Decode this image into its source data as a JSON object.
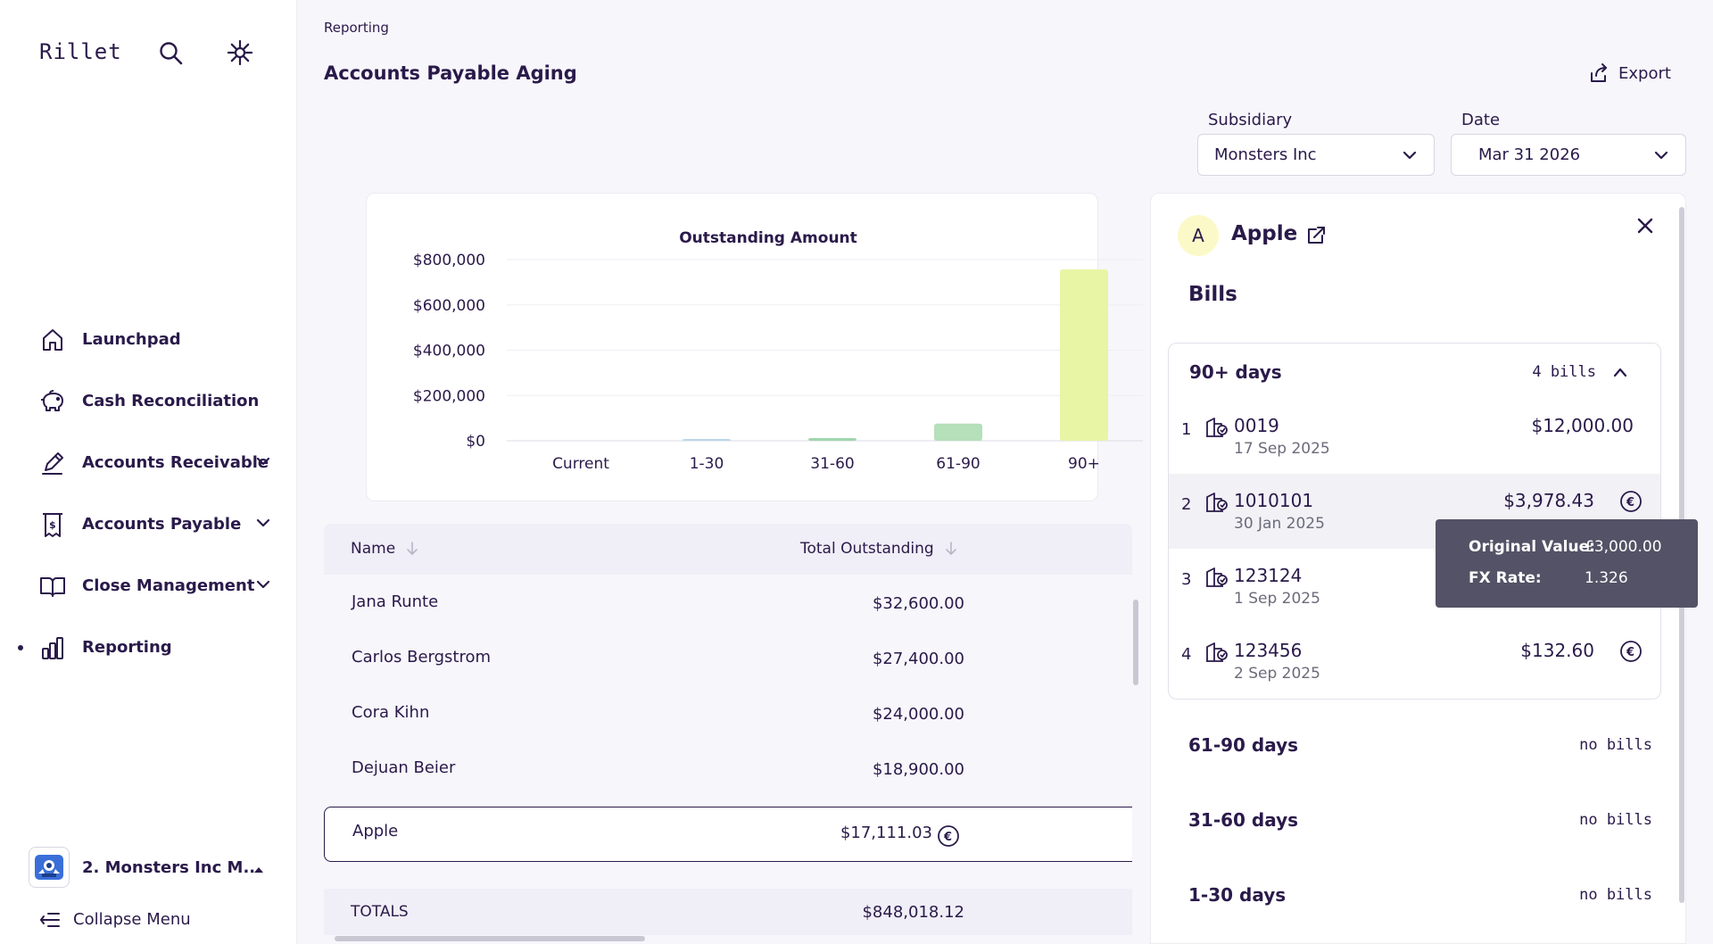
{
  "app": {
    "logo": "Rillet"
  },
  "sidebar": {
    "items": [
      {
        "label": "Launchpad",
        "icon": "home-icon"
      },
      {
        "label": "Cash Reconciliation",
        "icon": "piggy-bank-icon"
      },
      {
        "label": "Accounts Receivable",
        "icon": "signature-icon"
      },
      {
        "label": "Accounts Payable",
        "icon": "receipt-icon"
      },
      {
        "label": "Close Management",
        "icon": "book-icon"
      },
      {
        "label": "Reporting",
        "icon": "bar-chart-icon",
        "active": true
      }
    ],
    "org_name": "2. Monsters Inc M...",
    "collapse_label": "Collapse Menu"
  },
  "header": {
    "breadcrumb": "Reporting",
    "title": "Accounts Payable Aging",
    "export_label": "Export",
    "subsidiary_label": "Subsidiary",
    "subsidiary_value": "Monsters Inc",
    "date_label": "Date",
    "date_value": "Mar 31 2026"
  },
  "chart_data": {
    "type": "bar",
    "title": "Outstanding Amount",
    "categories": [
      "Current",
      "1-30",
      "31-60",
      "61-90",
      "90+"
    ],
    "values": [
      0,
      3000,
      12000,
      76000,
      757000
    ],
    "ylim": [
      0,
      800000
    ],
    "yticks": [
      "$800,000",
      "$600,000",
      "$400,000",
      "$200,000",
      "$0"
    ],
    "colors": [
      "#b9d8e8",
      "#b9d8e8",
      "#9fd6ae",
      "#b5e0b9",
      "#e8f5a5"
    ],
    "xlabel": "",
    "ylabel": "",
    "grid": true
  },
  "table": {
    "col_name": "Name",
    "col_total": "Total Outstanding",
    "rows": [
      {
        "name": "Jana Runte",
        "amount": "$32,600.00"
      },
      {
        "name": "Carlos Bergstrom",
        "amount": "$27,400.00"
      },
      {
        "name": "Cora Kihn",
        "amount": "$24,000.00"
      },
      {
        "name": "Dejuan Beier",
        "amount": "$18,900.00"
      },
      {
        "name": "Apple",
        "amount": "$17,111.03"
      }
    ],
    "totals_label": "TOTALS",
    "totals_amount": "$848,018.12"
  },
  "panel": {
    "avatar_letter": "A",
    "vendor": "Apple",
    "section": "Bills",
    "group": {
      "label": "90+ days",
      "count": "4 bills",
      "bills": [
        {
          "idx": "1",
          "number": "0019",
          "date": "17 Sep 2025",
          "amount": "$12,000.00"
        },
        {
          "idx": "2",
          "number": "1010101",
          "date": "30 Jan 2025",
          "amount": "$3,978.43"
        },
        {
          "idx": "3",
          "number": "123124",
          "date": "1 Sep 2025",
          "amount": ""
        },
        {
          "idx": "4",
          "number": "123456",
          "date": "2 Sep 2025",
          "amount": "$132.60"
        }
      ]
    },
    "aging_rows": [
      {
        "label": "61-90 days",
        "count": "no bills"
      },
      {
        "label": "31-60 days",
        "count": "no bills"
      },
      {
        "label": "1-30 days",
        "count": "no bills"
      }
    ]
  },
  "tooltip": {
    "original_label": "Original Value:",
    "original_value": "£3,000.00",
    "fx_label": "FX Rate:",
    "fx_value": "1.326"
  },
  "colors": {
    "text": "#2a1a4a",
    "background": "#f7f6fb",
    "tooltip_bg": "#545266"
  }
}
